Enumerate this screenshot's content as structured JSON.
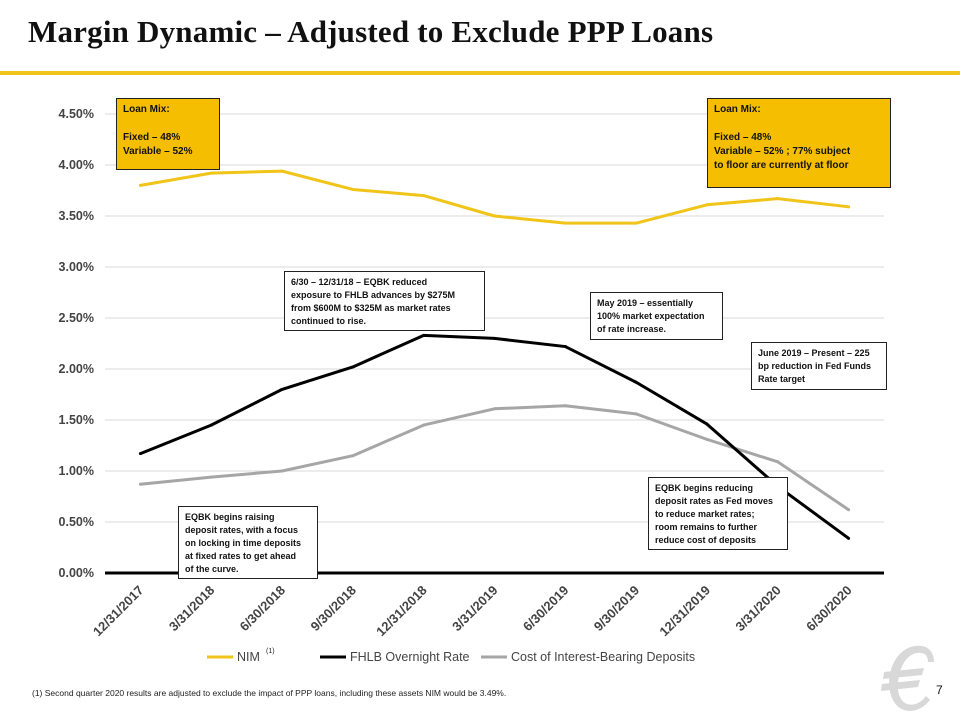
{
  "title": "Margin Dynamic – Adjusted to Exclude PPP Loans",
  "page_number": "7",
  "footnote": "(1) Second quarter 2020 results are adjusted to exclude the impact of PPP loans, including these assets NIM would be 3.49%.",
  "nim_superscript": "(1)",
  "colors": {
    "nim": "#f0c419",
    "fhlb": "#000000",
    "cost": "#a6a6a6",
    "accent": "#f6be00"
  },
  "annotations": {
    "loan_mix_left": {
      "lines": [
        "Loan Mix:",
        "",
        "Fixed – 48%",
        "Variable – 52%"
      ]
    },
    "loan_mix_right": {
      "lines": [
        "Loan Mix:",
        "",
        "Fixed – 48%",
        "Variable – 52% ; 77% subject",
        "to floor are currently at floor"
      ]
    },
    "fhlb_2018": {
      "lines": [
        "6/30 – 12/31/18 – EQBK reduced",
        "exposure to FHLB advances by $275M",
        "from $600M to $325M as market rates",
        "continued to rise."
      ]
    },
    "may_2019": {
      "lines": [
        "May 2019 – essentially",
        "100% market expectation",
        "of rate increase."
      ]
    },
    "june_2019": {
      "lines": [
        "June 2019 – Present – 225",
        "bp reduction in Fed Funds",
        "Rate target"
      ]
    },
    "deposit_raising": {
      "lines": [
        "EQBK begins raising",
        "deposit rates, with a focus",
        "on locking in time deposits",
        "at fixed rates to get ahead",
        "of the curve."
      ]
    },
    "deposit_reducing": {
      "lines": [
        "EQBK begins reducing",
        "deposit rates as Fed moves",
        "to reduce market rates;",
        "room remains to further",
        "reduce cost of deposits"
      ]
    }
  },
  "chart_data": {
    "type": "line",
    "categories": [
      "12/31/2017",
      "3/31/2018",
      "6/30/2018",
      "9/30/2018",
      "12/31/2018",
      "3/31/2019",
      "6/30/2019",
      "9/30/2019",
      "12/31/2019",
      "3/31/2020",
      "6/30/2020"
    ],
    "y_tick_labels": [
      "0.00%",
      "0.50%",
      "1.00%",
      "1.50%",
      "2.00%",
      "2.50%",
      "3.00%",
      "3.50%",
      "4.00%",
      "4.50%"
    ],
    "y_ticks": [
      0,
      0.5,
      1.0,
      1.5,
      2.0,
      2.5,
      3.0,
      3.5,
      4.0,
      4.5
    ],
    "ylim": [
      0,
      4.5
    ],
    "grid": true,
    "legend_position": "bottom",
    "series": [
      {
        "name": "NIM",
        "color": "#f0c419",
        "values": [
          3.8,
          3.92,
          3.94,
          3.76,
          3.7,
          3.5,
          3.43,
          3.43,
          3.61,
          3.67,
          3.59
        ]
      },
      {
        "name": "FHLB Overnight Rate",
        "color": "#000000",
        "values": [
          1.17,
          1.45,
          1.8,
          2.02,
          2.33,
          2.3,
          2.22,
          1.87,
          1.46,
          0.85,
          0.34
        ]
      },
      {
        "name": "Cost of Interest-Bearing Deposits",
        "color": "#a6a6a6",
        "values": [
          0.87,
          0.94,
          1.0,
          1.15,
          1.45,
          1.61,
          1.64,
          1.56,
          1.31,
          1.09,
          0.62
        ]
      }
    ]
  }
}
